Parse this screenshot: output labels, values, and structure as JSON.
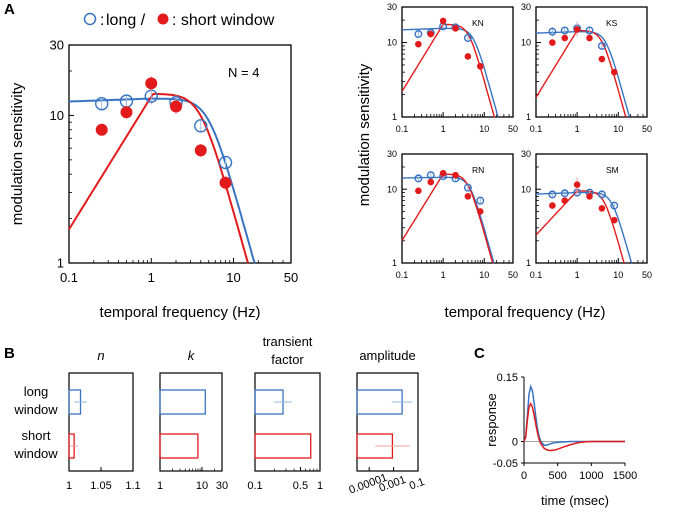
{
  "colors": {
    "long": "#3874c2",
    "short": "#e31a1c",
    "errbar_long": "#9ab8e0",
    "errbar_short": "#f3a0a0",
    "axis": "#000000"
  },
  "panel_labels": {
    "a": "A",
    "b": "B",
    "c": "C"
  },
  "legend": {
    "long_label": "long /",
    "short_label": ": short window",
    "colon": ":"
  },
  "chart_data": [
    {
      "id": "avg",
      "type": "line",
      "title": "N = 4",
      "xlabel": "temporal frequency (Hz)",
      "ylabel": "modulation sensitivity",
      "xscale": "log",
      "yscale": "log",
      "xlim": [
        0.1,
        50
      ],
      "ylim": [
        1,
        30
      ],
      "xticks": [
        "0.1",
        "1",
        "10",
        "50"
      ],
      "yticks": [
        "1",
        "10",
        "30"
      ],
      "series": [
        {
          "name": "long window",
          "x": [
            0.25,
            0.5,
            1,
            2,
            4,
            8
          ],
          "y": [
            12.0,
            12.5,
            13.5,
            12.2,
            8.5,
            4.8
          ],
          "err": [
            1.2,
            1.3,
            1.6,
            1.5,
            0.7,
            0.5
          ]
        },
        {
          "name": "short window",
          "x": [
            0.25,
            0.5,
            1,
            2,
            4,
            8
          ],
          "y": [
            8.0,
            10.5,
            16.5,
            11.5,
            5.8,
            3.5
          ],
          "err": [
            0.7,
            1.0,
            2.0,
            1.4,
            0.6,
            0.4
          ]
        }
      ],
      "fits": [
        {
          "name": "long fit",
          "peak": 13.0,
          "fp": 1.0,
          "k_low": 0.02,
          "fc": 5.0,
          "n": 2
        },
        {
          "name": "short fit",
          "peak": 14.0,
          "fp": 1.05,
          "k_low": 0.9,
          "fc": 4.0,
          "n": 2
        }
      ]
    },
    {
      "id": "KN",
      "type": "line",
      "title": "KN",
      "xscale": "log",
      "yscale": "log",
      "xlim": [
        0.1,
        50
      ],
      "ylim": [
        1,
        30
      ],
      "xticks": [
        "0.1",
        "1",
        "10",
        "50"
      ],
      "yticks": [
        "1",
        "10",
        "30"
      ],
      "series": [
        {
          "name": "long window",
          "x": [
            0.25,
            0.5,
            1,
            2,
            4
          ],
          "y": [
            13.0,
            13.5,
            16.5,
            16.0,
            11.5
          ],
          "err": [
            1.0,
            1.0,
            1.5,
            1.5,
            1.0
          ]
        },
        {
          "name": "short window",
          "x": [
            0.25,
            0.5,
            1,
            2,
            4,
            8
          ],
          "y": [
            9.5,
            13.0,
            19.5,
            15.5,
            6.5,
            4.8
          ],
          "err": [
            0.6,
            0.8,
            1.2,
            1.0,
            0.5,
            0.4
          ]
        }
      ],
      "fits": [
        {
          "name": "long fit",
          "peak": 15.5,
          "fp": 1.0,
          "k_low": 0.02,
          "fc": 5.5,
          "n": 2
        },
        {
          "name": "short fit",
          "peak": 17.5,
          "fp": 1.0,
          "k_low": 0.9,
          "fc": 4.2,
          "n": 2
        }
      ]
    },
    {
      "id": "KS",
      "type": "line",
      "title": "KS",
      "xscale": "log",
      "yscale": "log",
      "xlim": [
        0.1,
        50
      ],
      "ylim": [
        1,
        30
      ],
      "xticks": [
        "0.1",
        "1",
        "10",
        "50"
      ],
      "yticks": [
        "1",
        "10",
        "30"
      ],
      "series": [
        {
          "name": "long window",
          "x": [
            0.25,
            0.5,
            1,
            2,
            4
          ],
          "y": [
            14.0,
            14.5,
            15.5,
            14.5,
            9.0
          ],
          "err": [
            2.0,
            1.5,
            3.5,
            2.0,
            1.0
          ]
        },
        {
          "name": "short window",
          "x": [
            0.25,
            0.5,
            1,
            2,
            4,
            8
          ],
          "y": [
            10.0,
            11.5,
            15.0,
            11.5,
            6.0,
            4.0
          ],
          "err": [
            0.8,
            1.0,
            2.5,
            1.2,
            0.6,
            0.4
          ]
        }
      ],
      "fits": [
        {
          "name": "long fit",
          "peak": 14.0,
          "fp": 1.0,
          "k_low": 0.02,
          "fc": 5.0,
          "n": 2
        },
        {
          "name": "short fit",
          "peak": 14.5,
          "fp": 1.0,
          "k_low": 0.9,
          "fc": 4.0,
          "n": 2
        }
      ]
    },
    {
      "id": "RN",
      "type": "line",
      "title": "RN",
      "xscale": "log",
      "yscale": "log",
      "xlim": [
        0.1,
        50
      ],
      "ylim": [
        1,
        30
      ],
      "xticks": [
        "0.1",
        "1",
        "10",
        "50"
      ],
      "yticks": [
        "1",
        "10",
        "30"
      ],
      "series": [
        {
          "name": "long window",
          "x": [
            0.25,
            0.5,
            1,
            2,
            4,
            8
          ],
          "y": [
            14.0,
            15.5,
            15.0,
            14.0,
            10.5,
            7.0
          ],
          "err": [
            1.0,
            1.0,
            1.0,
            1.0,
            0.8,
            0.6
          ]
        },
        {
          "name": "short window",
          "x": [
            0.25,
            0.5,
            1,
            2,
            4,
            8
          ],
          "y": [
            9.5,
            12.5,
            16.5,
            15.5,
            8.0,
            5.0
          ],
          "err": [
            0.6,
            0.8,
            1.0,
            1.0,
            0.6,
            0.4
          ]
        }
      ],
      "fits": [
        {
          "name": "long fit",
          "peak": 14.5,
          "fp": 1.0,
          "k_low": 0.01,
          "fc": 4.5,
          "n": 2
        },
        {
          "name": "short fit",
          "peak": 16.0,
          "fp": 1.0,
          "k_low": 0.9,
          "fc": 4.0,
          "n": 2
        }
      ]
    },
    {
      "id": "SM",
      "type": "line",
      "title": "SM",
      "xscale": "log",
      "yscale": "log",
      "xlim": [
        0.1,
        50
      ],
      "ylim": [
        1,
        30
      ],
      "xticks": [
        "0.1",
        "1",
        "10",
        "50"
      ],
      "yticks": [
        "1",
        "10",
        "30"
      ],
      "series": [
        {
          "name": "long window",
          "x": [
            0.25,
            0.5,
            1,
            2,
            4,
            8
          ],
          "y": [
            8.5,
            8.8,
            9.0,
            9.0,
            8.5,
            6.0
          ],
          "err": [
            1.0,
            1.0,
            1.0,
            1.0,
            0.8,
            0.5
          ]
        },
        {
          "name": "short window",
          "x": [
            0.25,
            0.5,
            1,
            2,
            4,
            8
          ],
          "y": [
            6.0,
            7.0,
            11.5,
            8.0,
            5.5,
            3.8
          ],
          "err": [
            0.5,
            0.6,
            3.0,
            0.7,
            0.5,
            0.3
          ]
        }
      ],
      "fits": [
        {
          "name": "long fit",
          "peak": 9.0,
          "fp": 1.0,
          "k_low": 0.02,
          "fc": 7.0,
          "n": 2
        },
        {
          "name": "short fit",
          "peak": 9.5,
          "fp": 1.0,
          "k_low": 0.6,
          "fc": 4.5,
          "n": 2
        }
      ]
    },
    {
      "id": "params",
      "type": "bar",
      "orientation": "horizontal",
      "row_labels": [
        [
          "long",
          "window"
        ],
        [
          "short",
          "window"
        ]
      ],
      "panels": [
        {
          "title_lines": [
            "n"
          ],
          "italic": true,
          "scale": "linear",
          "xlim": [
            1,
            1.1
          ],
          "xticks": [
            "1",
            "1.05",
            "1.1"
          ],
          "values": {
            "long": 1.018,
            "short": 1.008
          },
          "err": {
            "long": 0.01,
            "short": 0.006
          }
        },
        {
          "title_lines": [
            "k"
          ],
          "italic": true,
          "scale": "log",
          "xlim": [
            1,
            30
          ],
          "xticks": [
            "1",
            "10",
            "30"
          ],
          "values": {
            "long": 12.0,
            "short": 8.0
          },
          "err": {
            "long": 1.0,
            "short": 0.0
          }
        },
        {
          "title_lines": [
            "transient",
            "factor"
          ],
          "italic": false,
          "scale": "log",
          "xlim": [
            0.1,
            1.0
          ],
          "xticks": [
            "0.1",
            "0.5",
            "1"
          ],
          "values": {
            "long": 0.27,
            "short": 0.72
          },
          "err": {
            "long": 0.1,
            "short": 0.0
          }
        },
        {
          "title_lines": [
            "amplitude"
          ],
          "italic": false,
          "scale": "log",
          "xlim": [
            1e-06,
            0.1
          ],
          "xticks": [
            "0.00001",
            "0.001",
            "0.1"
          ],
          "values": {
            "long": 0.005,
            "short": 0.0008
          },
          "err": {
            "long": 0.03,
            "short": 0.02
          }
        }
      ]
    },
    {
      "id": "response",
      "type": "line",
      "xlabel": "time (msec)",
      "ylabel": "response",
      "xlim": [
        0,
        1500
      ],
      "ylim": [
        -0.05,
        0.15
      ],
      "xticks": [
        "0",
        "500",
        "1000",
        "1500"
      ],
      "yticks": [
        "0.15",
        "0",
        "-0.05"
      ],
      "series": [
        {
          "name": "long window",
          "x": [
            0,
            25,
            50,
            75,
            100,
            125,
            150,
            175,
            200,
            225,
            250,
            300,
            350,
            400,
            450,
            500,
            600,
            700,
            800,
            900,
            1000,
            1200,
            1500
          ],
          "y": [
            0,
            0.012,
            0.06,
            0.11,
            0.128,
            0.118,
            0.09,
            0.058,
            0.03,
            0.012,
            0.0,
            -0.009,
            -0.008,
            -0.005,
            -0.003,
            -0.002,
            -0.001,
            0,
            0,
            0,
            0,
            0,
            0
          ]
        },
        {
          "name": "short window",
          "x": [
            0,
            25,
            50,
            75,
            100,
            125,
            150,
            175,
            200,
            225,
            250,
            300,
            350,
            400,
            450,
            500,
            550,
            600,
            700,
            800,
            900,
            1000,
            1200,
            1500
          ],
          "y": [
            0,
            0.01,
            0.05,
            0.08,
            0.088,
            0.08,
            0.062,
            0.04,
            0.02,
            0.005,
            -0.005,
            -0.016,
            -0.02,
            -0.021,
            -0.02,
            -0.018,
            -0.015,
            -0.012,
            -0.007,
            -0.003,
            -0.001,
            0,
            0,
            0
          ]
        }
      ]
    }
  ]
}
